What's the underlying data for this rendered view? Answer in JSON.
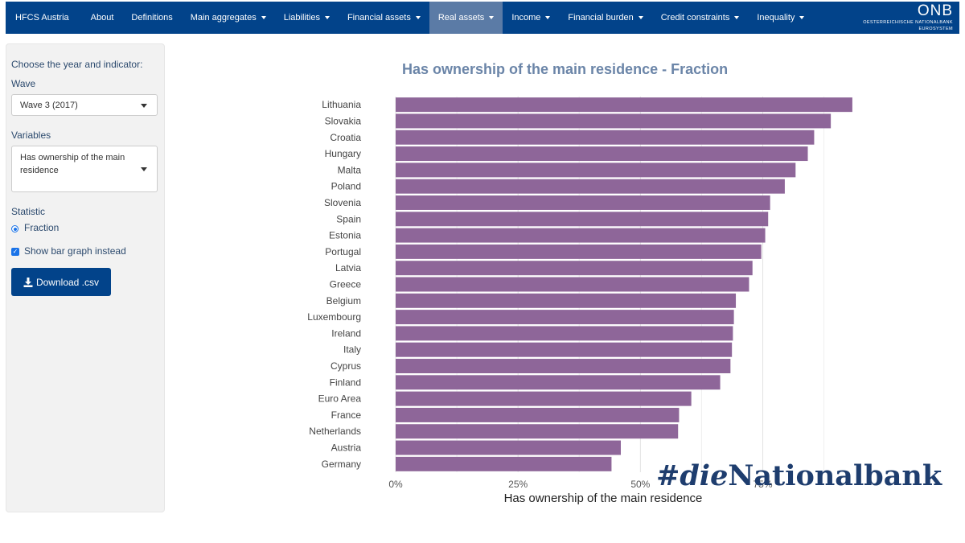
{
  "navbar": {
    "brand": "HFCS Austria",
    "items": [
      {
        "label": "About",
        "dropdown": false,
        "active": false
      },
      {
        "label": "Definitions",
        "dropdown": false,
        "active": false
      },
      {
        "label": "Main aggregates",
        "dropdown": true,
        "active": false
      },
      {
        "label": "Liabilities",
        "dropdown": true,
        "active": false
      },
      {
        "label": "Financial assets",
        "dropdown": true,
        "active": false
      },
      {
        "label": "Real assets",
        "dropdown": true,
        "active": true
      },
      {
        "label": "Income",
        "dropdown": true,
        "active": false
      },
      {
        "label": "Financial burden",
        "dropdown": true,
        "active": false
      },
      {
        "label": "Credit constraints",
        "dropdown": true,
        "active": false
      },
      {
        "label": "Inequality",
        "dropdown": true,
        "active": false
      }
    ],
    "logo": {
      "mark": "ONB",
      "line1": "OESTERREICHISCHE NATIONALBANK",
      "line2": "EUROSYSTEM"
    }
  },
  "sidebar": {
    "intro": "Choose the year and indicator:",
    "wave_label": "Wave",
    "wave_value": "Wave 3 (2017)",
    "variables_label": "Variables",
    "variables_value": "Has ownership of the main residence",
    "statistic_label": "Statistic",
    "statistic_option": "Fraction",
    "show_bar_label": "Show bar graph instead",
    "show_bar_checked": true,
    "download_label": "Download .csv"
  },
  "chart_data": {
    "type": "bar",
    "orientation": "horizontal",
    "title": "Has ownership of the main residence - Fraction",
    "xlabel": "Has ownership of the main residence",
    "ylabel": "",
    "xlim": [
      0,
      0.92
    ],
    "xticks": [
      "0%",
      "25%",
      "50%",
      "75%"
    ],
    "xtick_values": [
      0,
      0.25,
      0.5,
      0.75
    ],
    "grid": true,
    "bar_color": "#8e6699",
    "categories": [
      "Lithuania",
      "Slovakia",
      "Croatia",
      "Hungary",
      "Malta",
      "Poland",
      "Slovenia",
      "Spain",
      "Estonia",
      "Portugal",
      "Latvia",
      "Greece",
      "Belgium",
      "Luxembourg",
      "Ireland",
      "Italy",
      "Cyprus",
      "Finland",
      "Euro Area",
      "France",
      "Netherlands",
      "Austria",
      "Germany"
    ],
    "values": [
      0.933,
      0.889,
      0.855,
      0.842,
      0.817,
      0.795,
      0.765,
      0.761,
      0.755,
      0.747,
      0.729,
      0.722,
      0.695,
      0.691,
      0.689,
      0.687,
      0.684,
      0.663,
      0.604,
      0.579,
      0.577,
      0.46,
      0.441
    ]
  },
  "watermark": {
    "prefix": "#",
    "italic": "die",
    "rest": "Nationalbank"
  }
}
